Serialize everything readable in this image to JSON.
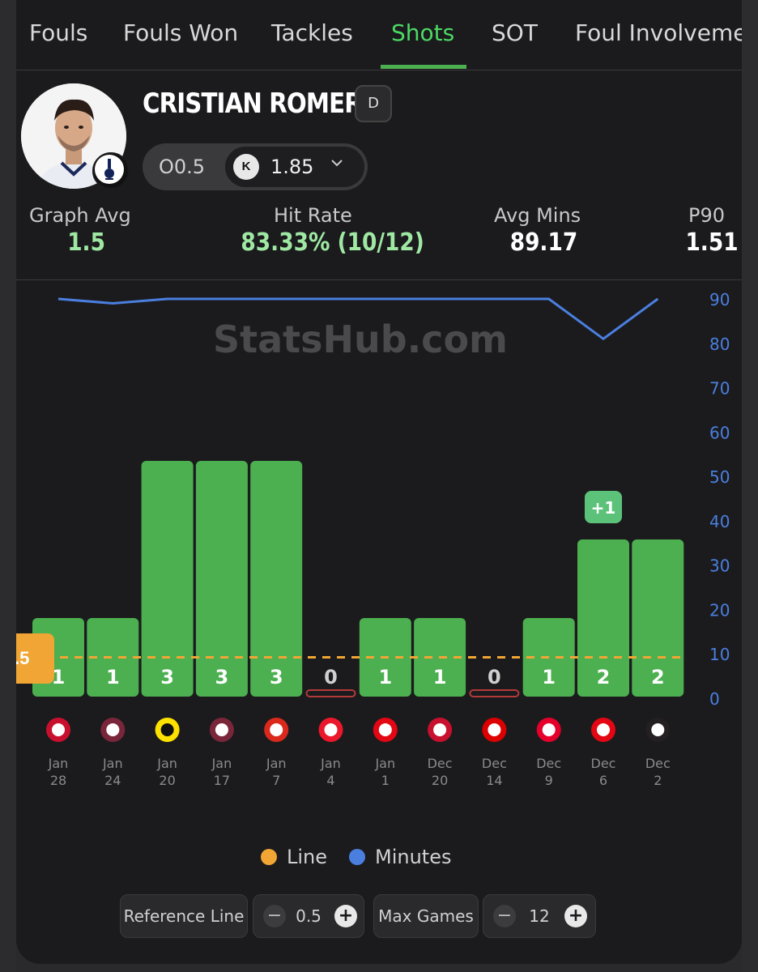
{
  "tabs": [
    {
      "label": "Fouls"
    },
    {
      "label": "Fouls Won"
    },
    {
      "label": "Tackles"
    },
    {
      "label": "Shots",
      "active": true
    },
    {
      "label": "SOT"
    },
    {
      "label": "Foul Involveme"
    }
  ],
  "player": {
    "name": "CRISTIAN ROMERO",
    "position": "D",
    "odds_line": "O0.5",
    "odds_price": "1.85",
    "book_icon": "sportsbook-logo-icon"
  },
  "stats": {
    "graph_avg": {
      "label": "Graph Avg",
      "value": "1.5"
    },
    "hit_rate": {
      "label": "Hit Rate",
      "value": "83.33% (10/12)"
    },
    "avg_mins": {
      "label": "Avg Mins",
      "value": "89.17"
    },
    "p90": {
      "label": "P90",
      "value": "1.51"
    }
  },
  "watermark": "StatsHub.com",
  "reference_tag": ".5",
  "legend": {
    "line_label": "Line",
    "minutes_label": "Minutes"
  },
  "controls": {
    "reference_line_label": "Reference Line",
    "reference_line_value": "0.5",
    "max_games_label": "Max Games",
    "max_games_value": "12"
  },
  "colors": {
    "hit": "#4caf50",
    "miss": "#b23a3a",
    "line": "#f0a534",
    "minutes": "#4a7fe0",
    "accent": "#4cd964"
  },
  "chart_data": {
    "type": "bar",
    "title": "",
    "reference_line": 0.5,
    "categories": [
      "Jan 28",
      "Jan 24",
      "Jan 20",
      "Jan 17",
      "Jan 7",
      "Jan 4",
      "Jan 1",
      "Dec 20",
      "Dec 14",
      "Dec 9",
      "Dec 6",
      "Dec 2"
    ],
    "date_top": [
      "Jan",
      "Jan",
      "Jan",
      "Jan",
      "Jan",
      "Jan",
      "Jan",
      "Dec",
      "Dec",
      "Dec",
      "Dec",
      "Dec"
    ],
    "date_bottom": [
      "28",
      "24",
      "20",
      "17",
      "7",
      "4",
      "1",
      "20",
      "14",
      "9",
      "6",
      "2"
    ],
    "opponent_icons": [
      "eintracht-frankfurt-icon",
      "burnley-icon",
      "borussia-dortmund-icon",
      "west-ham-icon",
      "bournemouth-icon",
      "sunderland-icon",
      "brentford-icon",
      "liverpool-icon",
      "nottingham-forest-icon",
      "slavia-praha-icon",
      "brentford-icon",
      "newcastle-icon"
    ],
    "series": [
      {
        "name": "Shots",
        "values": [
          1,
          1,
          3,
          3,
          3,
          0,
          1,
          1,
          0,
          1,
          2,
          2
        ]
      },
      {
        "name": "Minutes",
        "values": [
          90,
          89,
          90,
          90,
          90,
          90,
          90,
          90,
          90,
          90,
          81,
          90
        ]
      }
    ],
    "annotations": [
      {
        "index": 10,
        "text": "+1"
      }
    ],
    "y2_ticks": [
      90,
      80,
      70,
      60,
      50,
      40,
      30,
      20,
      10,
      0
    ],
    "y2lim": [
      0,
      90
    ]
  }
}
